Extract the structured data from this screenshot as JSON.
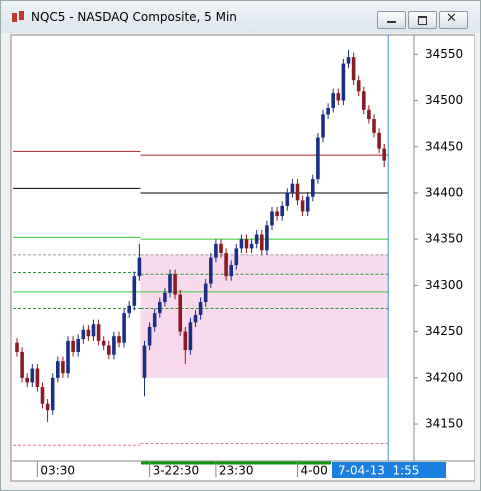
{
  "chart_data": {
    "type": "candlestick",
    "title": "NQC5 - NASDAQ Composite, 5 Min",
    "open": [
      34238,
      34228,
      34200,
      34195,
      34210,
      34190,
      34172,
      34165,
      34200,
      34218,
      34205,
      34240,
      34228,
      34242,
      34252,
      34245,
      34258,
      34240,
      34235,
      34225,
      34245,
      34238,
      34270,
      34278,
      34310,
      34200,
      34235,
      34255,
      34270,
      34282,
      34292,
      34312,
      34290,
      34250,
      34230,
      34260,
      34268,
      34282,
      34302,
      34330,
      34345,
      34335,
      34310,
      34322,
      34340,
      34350,
      34340,
      34345,
      34355,
      34338,
      34365,
      34380,
      34375,
      34386,
      34400,
      34410,
      34392,
      34380,
      34396,
      34415,
      34460,
      34485,
      34492,
      34508,
      34500,
      34540,
      34547,
      34522,
      34510,
      34490,
      34480,
      34465,
      34448
    ],
    "high": [
      34243,
      34233,
      34205,
      34215,
      34215,
      34195,
      34177,
      34205,
      34223,
      34223,
      34245,
      34245,
      34247,
      34257,
      34257,
      34263,
      34263,
      34245,
      34240,
      34250,
      34250,
      34275,
      34283,
      34315,
      34345,
      34240,
      34260,
      34275,
      34287,
      34297,
      34317,
      34317,
      34295,
      34255,
      34265,
      34273,
      34287,
      34307,
      34335,
      34350,
      34350,
      34340,
      34327,
      34345,
      34355,
      34355,
      34350,
      34360,
      34360,
      34370,
      34385,
      34385,
      34391,
      34405,
      34415,
      34415,
      34397,
      34401,
      34420,
      34465,
      34490,
      34497,
      34513,
      34513,
      34545,
      34555,
      34552,
      34527,
      34515,
      34495,
      34485,
      34470,
      34453
    ],
    "low": [
      34223,
      34195,
      34190,
      34190,
      34185,
      34167,
      34152,
      34160,
      34195,
      34200,
      34200,
      34223,
      34223,
      34237,
      34240,
      34240,
      34235,
      34230,
      34220,
      34220,
      34233,
      34233,
      34265,
      34273,
      34305,
      34180,
      34230,
      34250,
      34265,
      34277,
      34287,
      34285,
      34245,
      34215,
      34225,
      34255,
      34263,
      34277,
      34297,
      34325,
      34330,
      34305,
      34305,
      34317,
      34335,
      34335,
      34335,
      34340,
      34333,
      34333,
      34360,
      34370,
      34370,
      34381,
      34395,
      34387,
      34375,
      34375,
      34391,
      34410,
      34455,
      34480,
      34487,
      34495,
      34495,
      34535,
      34517,
      34505,
      34485,
      34475,
      34460,
      34443,
      34428
    ],
    "close": [
      34228,
      34200,
      34195,
      34210,
      34190,
      34172,
      34165,
      34200,
      34218,
      34205,
      34240,
      34228,
      34242,
      34252,
      34245,
      34258,
      34240,
      34235,
      34225,
      34245,
      34238,
      34270,
      34278,
      34310,
      34330,
      34235,
      34255,
      34270,
      34282,
      34292,
      34312,
      34290,
      34250,
      34230,
      34260,
      34268,
      34282,
      34302,
      34330,
      34345,
      34335,
      34310,
      34322,
      34340,
      34350,
      34340,
      34345,
      34355,
      34338,
      34365,
      34380,
      34375,
      34386,
      34400,
      34410,
      34392,
      34380,
      34396,
      34415,
      34460,
      34485,
      34492,
      34508,
      34500,
      34540,
      34547,
      34522,
      34510,
      34490,
      34480,
      34465,
      34448,
      34435
    ],
    "up_color": "#1c2f86",
    "down_color": "#8c1c24",
    "ylim": [
      34110,
      34572
    ],
    "yticks": [
      34150,
      34200,
      34250,
      34300,
      34350,
      34400,
      34450,
      34500,
      34550
    ],
    "xticks": [
      {
        "value": 4,
        "label": "03:30"
      },
      {
        "value": 26,
        "label": "3-22:30"
      },
      {
        "value": 39,
        "label": "23:30"
      },
      {
        "value": 55,
        "label": "4-00"
      }
    ],
    "cursor_label": "7-04-13  1:55",
    "levels": [
      {
        "values": [
          34445,
          34441
        ],
        "color": "#b22222",
        "dash": false
      },
      {
        "values": [
          34405,
          34400
        ],
        "color": "#000000",
        "dash": false
      },
      {
        "values": [
          34352,
          34350
        ],
        "color": "#33cc33",
        "dash": false
      },
      {
        "values": [
          34333,
          34333
        ],
        "color": "#999999",
        "dash": true
      },
      {
        "values": [
          34314,
          34312
        ],
        "color": "#229922",
        "dash": true
      },
      {
        "values": [
          34293,
          34293
        ],
        "color": "#33cc33",
        "dash": false
      },
      {
        "values": [
          34275,
          34275
        ],
        "color": "#229922",
        "dash": true
      },
      {
        "values": [
          34127,
          34129
        ],
        "color": "#e070b0",
        "dash": true
      }
    ],
    "box": {
      "top": 34333,
      "bottom": 34200,
      "color": "#f9d9ee"
    }
  }
}
